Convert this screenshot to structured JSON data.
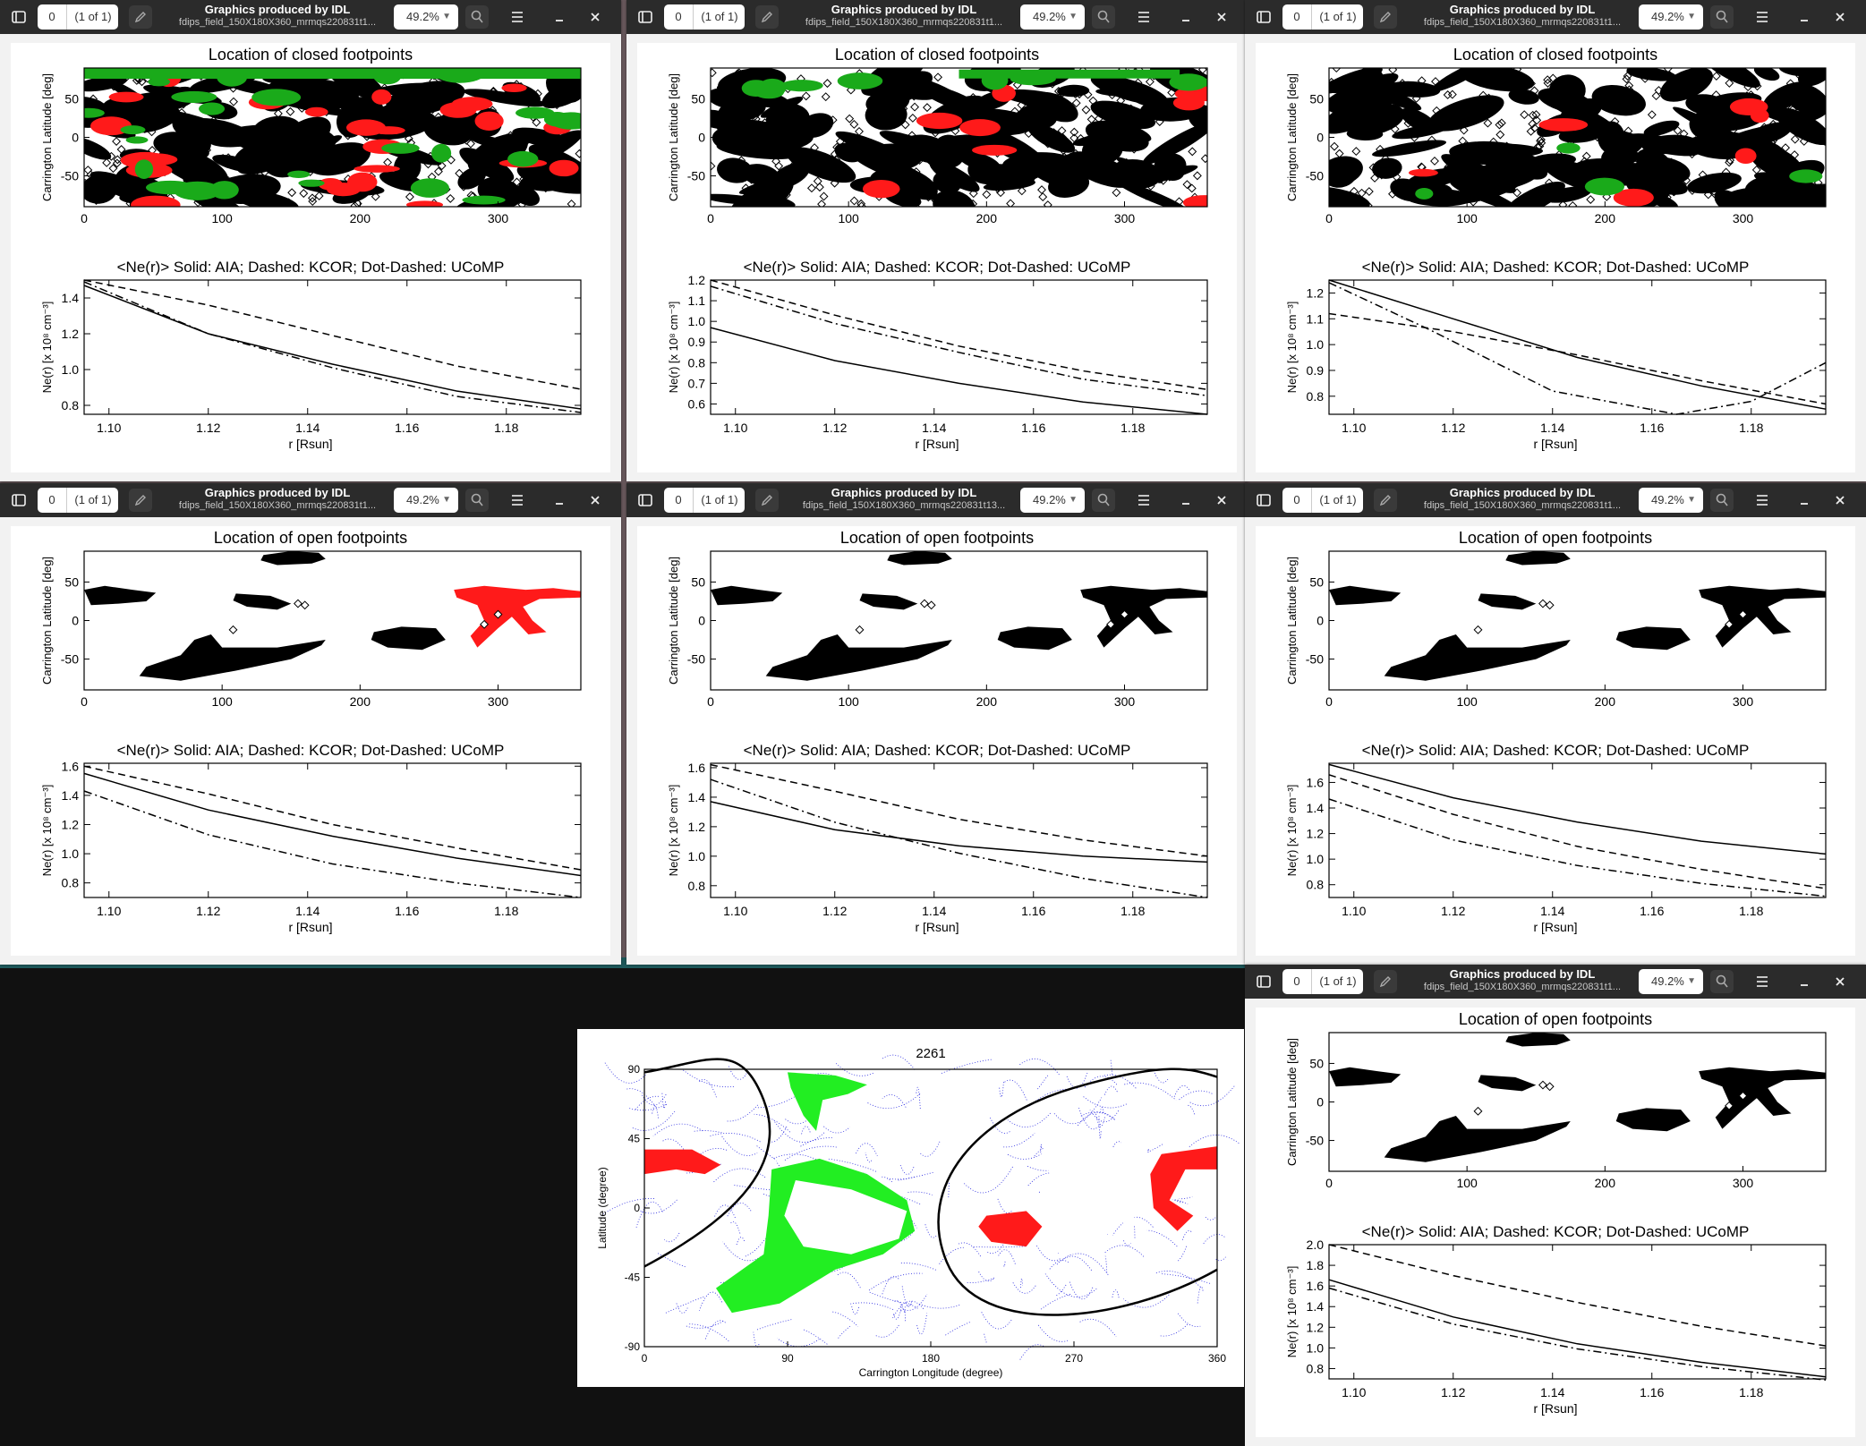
{
  "header": {
    "page_number": "0",
    "page_count": "(1 of 1)",
    "title": "Graphics produced by IDL",
    "subtitle": "fdips_field_150X180X360_mrmqs220831t1...",
    "subtitle_alt": "fdips_field_150X180X360_mrmqs220831t13...",
    "zoom": "49.2%"
  },
  "icons": [
    "sidebar-icon",
    "pencil-icon",
    "search-icon",
    "menu-icon",
    "minimize-icon",
    "close-icon",
    "chevron-down-icon"
  ],
  "plots": {
    "closed_title": "Location of closed footpoints",
    "open_title": "Location of open footpoints",
    "density_title": "<Ne(r)>   Solid: AIA; Dashed: KCOR; Dot-Dashed: UCoMP",
    "map_ylabel": "Carrington Latitude [deg]",
    "density_ylabel": "Ne(r) [x 10⁸ cm⁻³]",
    "density_xlabel": "r [Rsun]",
    "map_xticks": [
      "0",
      "100",
      "200",
      "300"
    ],
    "map_yticks": [
      "50",
      "0",
      "-50"
    ],
    "r_ticks": [
      "1.10",
      "1.12",
      "1.14",
      "1.16",
      "1.18"
    ]
  },
  "colors": {
    "red": "#ff1a1a",
    "green": "#1aaa1a",
    "black": "#000000",
    "bright_green": "#22ee22",
    "blue": "#2a2ae0"
  },
  "chart_data": [
    {
      "panel": "w1",
      "type": "line",
      "map_kind": "closed",
      "ylim": [
        0.75,
        1.5
      ],
      "y_ticks": [
        0.8,
        1.0,
        1.2,
        1.4
      ],
      "series": [
        {
          "style": "solid",
          "x": [
            1.095,
            1.12,
            1.145,
            1.17,
            1.195
          ],
          "y": [
            1.47,
            1.2,
            1.03,
            0.88,
            0.78
          ]
        },
        {
          "style": "dashed",
          "x": [
            1.095,
            1.12,
            1.145,
            1.17,
            1.195
          ],
          "y": [
            1.5,
            1.36,
            1.19,
            1.02,
            0.89
          ]
        },
        {
          "style": "dot-dashed",
          "x": [
            1.095,
            1.12,
            1.145,
            1.17,
            1.195
          ],
          "y": [
            1.49,
            1.2,
            1.01,
            0.85,
            0.76
          ]
        }
      ]
    },
    {
      "panel": "w2",
      "type": "line",
      "map_kind": "closed",
      "ylim": [
        0.55,
        1.2
      ],
      "y_ticks": [
        0.6,
        0.7,
        0.8,
        0.9,
        1.0,
        1.1,
        1.2
      ],
      "series": [
        {
          "style": "solid",
          "x": [
            1.095,
            1.12,
            1.145,
            1.17,
            1.195
          ],
          "y": [
            0.97,
            0.81,
            0.7,
            0.61,
            0.55
          ]
        },
        {
          "style": "dashed",
          "x": [
            1.095,
            1.12,
            1.145,
            1.17,
            1.195
          ],
          "y": [
            1.2,
            1.03,
            0.88,
            0.76,
            0.67
          ]
        },
        {
          "style": "dot-dashed",
          "x": [
            1.095,
            1.12,
            1.145,
            1.17,
            1.195
          ],
          "y": [
            1.17,
            0.99,
            0.85,
            0.72,
            0.64
          ]
        }
      ]
    },
    {
      "panel": "w3",
      "type": "line",
      "map_kind": "closed",
      "ylim": [
        0.73,
        1.25
      ],
      "y_ticks": [
        0.8,
        0.9,
        1.0,
        1.1,
        1.2
      ],
      "series": [
        {
          "style": "solid",
          "x": [
            1.095,
            1.12,
            1.145,
            1.17,
            1.195
          ],
          "y": [
            1.25,
            1.1,
            0.95,
            0.84,
            0.75
          ]
        },
        {
          "style": "dashed",
          "x": [
            1.095,
            1.12,
            1.145,
            1.17,
            1.195
          ],
          "y": [
            1.12,
            1.05,
            0.96,
            0.86,
            0.77
          ]
        },
        {
          "style": "dot-dashed",
          "x": [
            1.095,
            1.115,
            1.14,
            1.165,
            1.18,
            1.195
          ],
          "y": [
            1.24,
            1.06,
            0.82,
            0.73,
            0.78,
            0.93
          ]
        }
      ]
    },
    {
      "panel": "w4",
      "type": "line",
      "map_kind": "open",
      "ylim": [
        0.7,
        1.62
      ],
      "y_ticks": [
        0.8,
        1.0,
        1.2,
        1.4,
        1.6
      ],
      "series": [
        {
          "style": "solid",
          "x": [
            1.095,
            1.12,
            1.145,
            1.17,
            1.195
          ],
          "y": [
            1.55,
            1.3,
            1.12,
            0.97,
            0.85
          ]
        },
        {
          "style": "dashed",
          "x": [
            1.095,
            1.12,
            1.145,
            1.17,
            1.195
          ],
          "y": [
            1.6,
            1.41,
            1.2,
            1.04,
            0.89
          ]
        },
        {
          "style": "dot-dashed",
          "x": [
            1.095,
            1.12,
            1.145,
            1.17,
            1.195
          ],
          "y": [
            1.43,
            1.13,
            0.93,
            0.8,
            0.7
          ]
        }
      ]
    },
    {
      "panel": "w5",
      "type": "line",
      "map_kind": "open",
      "ylim": [
        0.72,
        1.63
      ],
      "y_ticks": [
        0.8,
        1.0,
        1.2,
        1.4,
        1.6
      ],
      "series": [
        {
          "style": "solid",
          "x": [
            1.095,
            1.12,
            1.145,
            1.17,
            1.195
          ],
          "y": [
            1.37,
            1.18,
            1.07,
            1.0,
            0.96
          ]
        },
        {
          "style": "dashed",
          "x": [
            1.095,
            1.12,
            1.145,
            1.17,
            1.195
          ],
          "y": [
            1.62,
            1.44,
            1.25,
            1.11,
            1.0
          ]
        },
        {
          "style": "dot-dashed",
          "x": [
            1.095,
            1.12,
            1.145,
            1.17,
            1.195
          ],
          "y": [
            1.52,
            1.23,
            1.02,
            0.85,
            0.72
          ]
        }
      ]
    },
    {
      "panel": "w6",
      "type": "line",
      "map_kind": "open",
      "ylim": [
        0.7,
        1.75
      ],
      "y_ticks": [
        0.8,
        1.0,
        1.2,
        1.4,
        1.6
      ],
      "series": [
        {
          "style": "solid",
          "x": [
            1.095,
            1.12,
            1.145,
            1.17,
            1.195
          ],
          "y": [
            1.74,
            1.48,
            1.29,
            1.14,
            1.04
          ]
        },
        {
          "style": "dashed",
          "x": [
            1.095,
            1.12,
            1.145,
            1.17,
            1.195
          ],
          "y": [
            1.66,
            1.35,
            1.1,
            0.92,
            0.77
          ]
        },
        {
          "style": "dot-dashed",
          "x": [
            1.095,
            1.12,
            1.145,
            1.17,
            1.195
          ],
          "y": [
            1.47,
            1.15,
            0.95,
            0.81,
            0.71
          ]
        }
      ]
    },
    {
      "panel": "w7",
      "type": "line",
      "map_kind": "open",
      "ylim": [
        0.7,
        2.0
      ],
      "y_ticks": [
        0.8,
        1.0,
        1.2,
        1.4,
        1.6,
        1.8,
        2.0
      ],
      "series": [
        {
          "style": "solid",
          "x": [
            1.095,
            1.12,
            1.145,
            1.17,
            1.195
          ],
          "y": [
            1.66,
            1.3,
            1.04,
            0.86,
            0.72
          ]
        },
        {
          "style": "dashed",
          "x": [
            1.095,
            1.12,
            1.145,
            1.17,
            1.195
          ],
          "y": [
            2.0,
            1.7,
            1.44,
            1.21,
            1.02
          ]
        },
        {
          "style": "dot-dashed",
          "x": [
            1.095,
            1.12,
            1.145,
            1.17,
            1.195
          ],
          "y": [
            1.58,
            1.23,
            0.99,
            0.82,
            0.69
          ]
        }
      ]
    }
  ],
  "synoptic": {
    "title": "2261",
    "xlabel": "Carrington Longitude (degree)",
    "ylabel": "Latitude (degree)",
    "xticks": [
      "0",
      "90",
      "180",
      "270",
      "360"
    ],
    "yticks": [
      "90",
      "45",
      "0",
      "-45",
      "-90"
    ]
  }
}
